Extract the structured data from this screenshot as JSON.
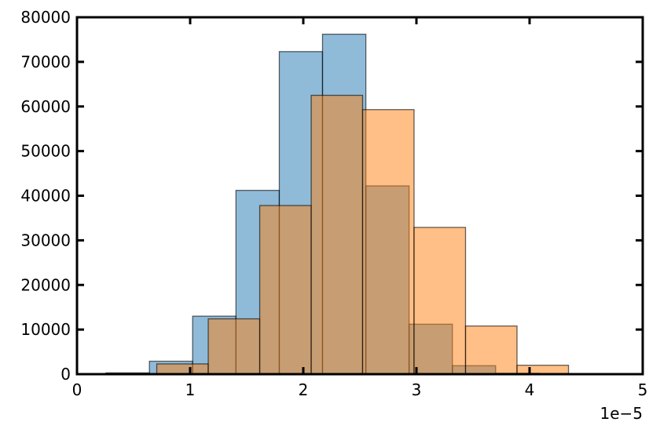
{
  "chart_data": {
    "type": "histogram",
    "series": [
      {
        "color": "#1f77b4",
        "edgecolor": "#000000",
        "alpha": 0.5,
        "bins": [
          0.257,
          0.64,
          1.022,
          1.405,
          1.788,
          2.17,
          2.553,
          2.935,
          3.318,
          3.7,
          4.083
        ],
        "values": [
          300,
          2900,
          13000,
          41200,
          72300,
          76200,
          42200,
          11200,
          1900,
          200
        ]
      },
      {
        "color": "#ff7f0e",
        "edgecolor": "#000000",
        "alpha": 0.5,
        "bins": [
          0.25,
          0.705,
          1.16,
          1.615,
          2.07,
          2.524,
          2.979,
          3.434,
          3.889,
          4.344
        ],
        "values": [
          100,
          2300,
          12400,
          37800,
          62500,
          59300,
          32900,
          10800,
          2000
        ]
      }
    ],
    "xlim": [
      0,
      5
    ],
    "xticks": [
      0,
      1,
      2,
      3,
      4,
      5
    ],
    "ylim": [
      0,
      80000
    ],
    "yticks": [
      0,
      10000,
      20000,
      30000,
      40000,
      50000,
      60000,
      70000,
      80000
    ],
    "x_offset_label": "1e−5",
    "ticks_direction": "in",
    "ticks_all_sides": true
  }
}
